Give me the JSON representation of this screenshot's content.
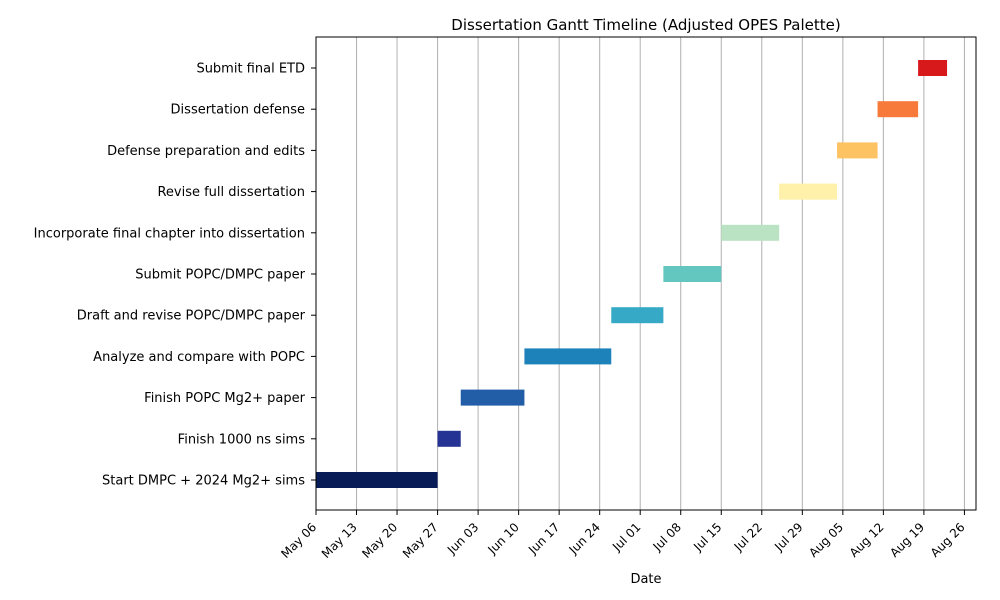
{
  "chart_data": {
    "type": "gantt",
    "title": "Dissertation Gantt Timeline (Adjusted OPES Palette)",
    "xlabel": "Date",
    "ylabel": "",
    "grid": {
      "x": true,
      "y": false
    },
    "x_range": [
      "2024-05-06",
      "2024-08-28"
    ],
    "x_ticks": [
      {
        "date": "2024-05-06",
        "label": "May 06"
      },
      {
        "date": "2024-05-13",
        "label": "May 13"
      },
      {
        "date": "2024-05-20",
        "label": "May 20"
      },
      {
        "date": "2024-05-27",
        "label": "May 27"
      },
      {
        "date": "2024-06-03",
        "label": "Jun 03"
      },
      {
        "date": "2024-06-10",
        "label": "Jun 10"
      },
      {
        "date": "2024-06-17",
        "label": "Jun 17"
      },
      {
        "date": "2024-06-24",
        "label": "Jun 24"
      },
      {
        "date": "2024-07-01",
        "label": "Jul 01"
      },
      {
        "date": "2024-07-08",
        "label": "Jul 08"
      },
      {
        "date": "2024-07-15",
        "label": "Jul 15"
      },
      {
        "date": "2024-07-22",
        "label": "Jul 22"
      },
      {
        "date": "2024-07-29",
        "label": "Jul 29"
      },
      {
        "date": "2024-08-05",
        "label": "Aug 05"
      },
      {
        "date": "2024-08-12",
        "label": "Aug 12"
      },
      {
        "date": "2024-08-19",
        "label": "Aug 19"
      },
      {
        "date": "2024-08-26",
        "label": "Aug 26"
      }
    ],
    "tasks": [
      {
        "name": "Start DMPC + 2024 Mg2+ sims",
        "start": "2024-05-06",
        "end": "2024-05-27",
        "color": "#081d58"
      },
      {
        "name": "Finish 1000 ns sims",
        "start": "2024-05-27",
        "end": "2024-05-31",
        "color": "#253494"
      },
      {
        "name": "Finish POPC Mg2+ paper",
        "start": "2024-05-31",
        "end": "2024-06-11",
        "color": "#225ea8"
      },
      {
        "name": "Analyze and compare with POPC",
        "start": "2024-06-11",
        "end": "2024-06-26",
        "color": "#1d82b9"
      },
      {
        "name": "Draft and revise POPC/DMPC paper",
        "start": "2024-06-26",
        "end": "2024-07-05",
        "color": "#36a9c6"
      },
      {
        "name": "Submit POPC/DMPC paper",
        "start": "2024-07-05",
        "end": "2024-07-15",
        "color": "#63c6bf"
      },
      {
        "name": "Incorporate final chapter into dissertation",
        "start": "2024-07-15",
        "end": "2024-07-25",
        "color": "#b9e3c2"
      },
      {
        "name": "Revise full dissertation",
        "start": "2024-07-25",
        "end": "2024-08-04",
        "color": "#fff0aa"
      },
      {
        "name": "Defense preparation and edits",
        "start": "2024-08-04",
        "end": "2024-08-11",
        "color": "#fdc262"
      },
      {
        "name": "Dissertation defense",
        "start": "2024-08-11",
        "end": "2024-08-18",
        "color": "#f77a3a"
      },
      {
        "name": "Submit final ETD",
        "start": "2024-08-18",
        "end": "2024-08-23",
        "color": "#d7191c"
      }
    ]
  }
}
